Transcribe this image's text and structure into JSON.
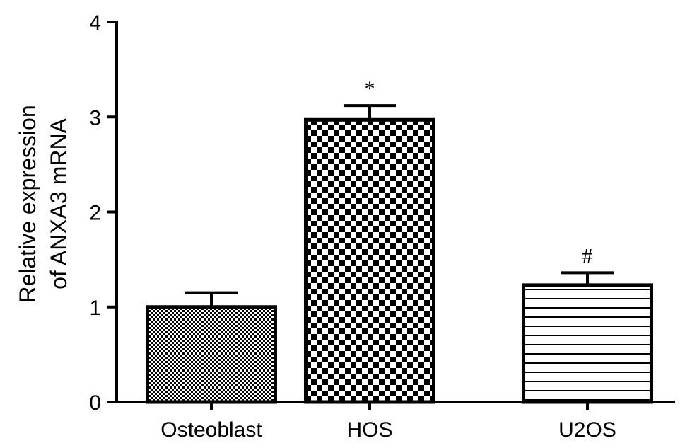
{
  "chart_data": {
    "type": "bar",
    "categories": [
      "Osteoblast",
      "HOS",
      "U2OS"
    ],
    "values": [
      1.0,
      2.97,
      1.23
    ],
    "error": [
      0.15,
      0.15,
      0.13
    ],
    "annotations": [
      "",
      "*",
      "#"
    ],
    "patterns": [
      "fine-dots",
      "checkerboard",
      "horizontal-lines"
    ],
    "ylabel_line1": "Relative expression",
    "ylabel_line2": "of ANXA3 mRNA",
    "xlabel": "",
    "ylim": [
      0,
      4
    ],
    "yticks": [
      "0",
      "1",
      "2",
      "3",
      "4"
    ],
    "grid": false,
    "colors": {
      "bar_stroke": "#000000",
      "fill": "#ffffff"
    }
  }
}
